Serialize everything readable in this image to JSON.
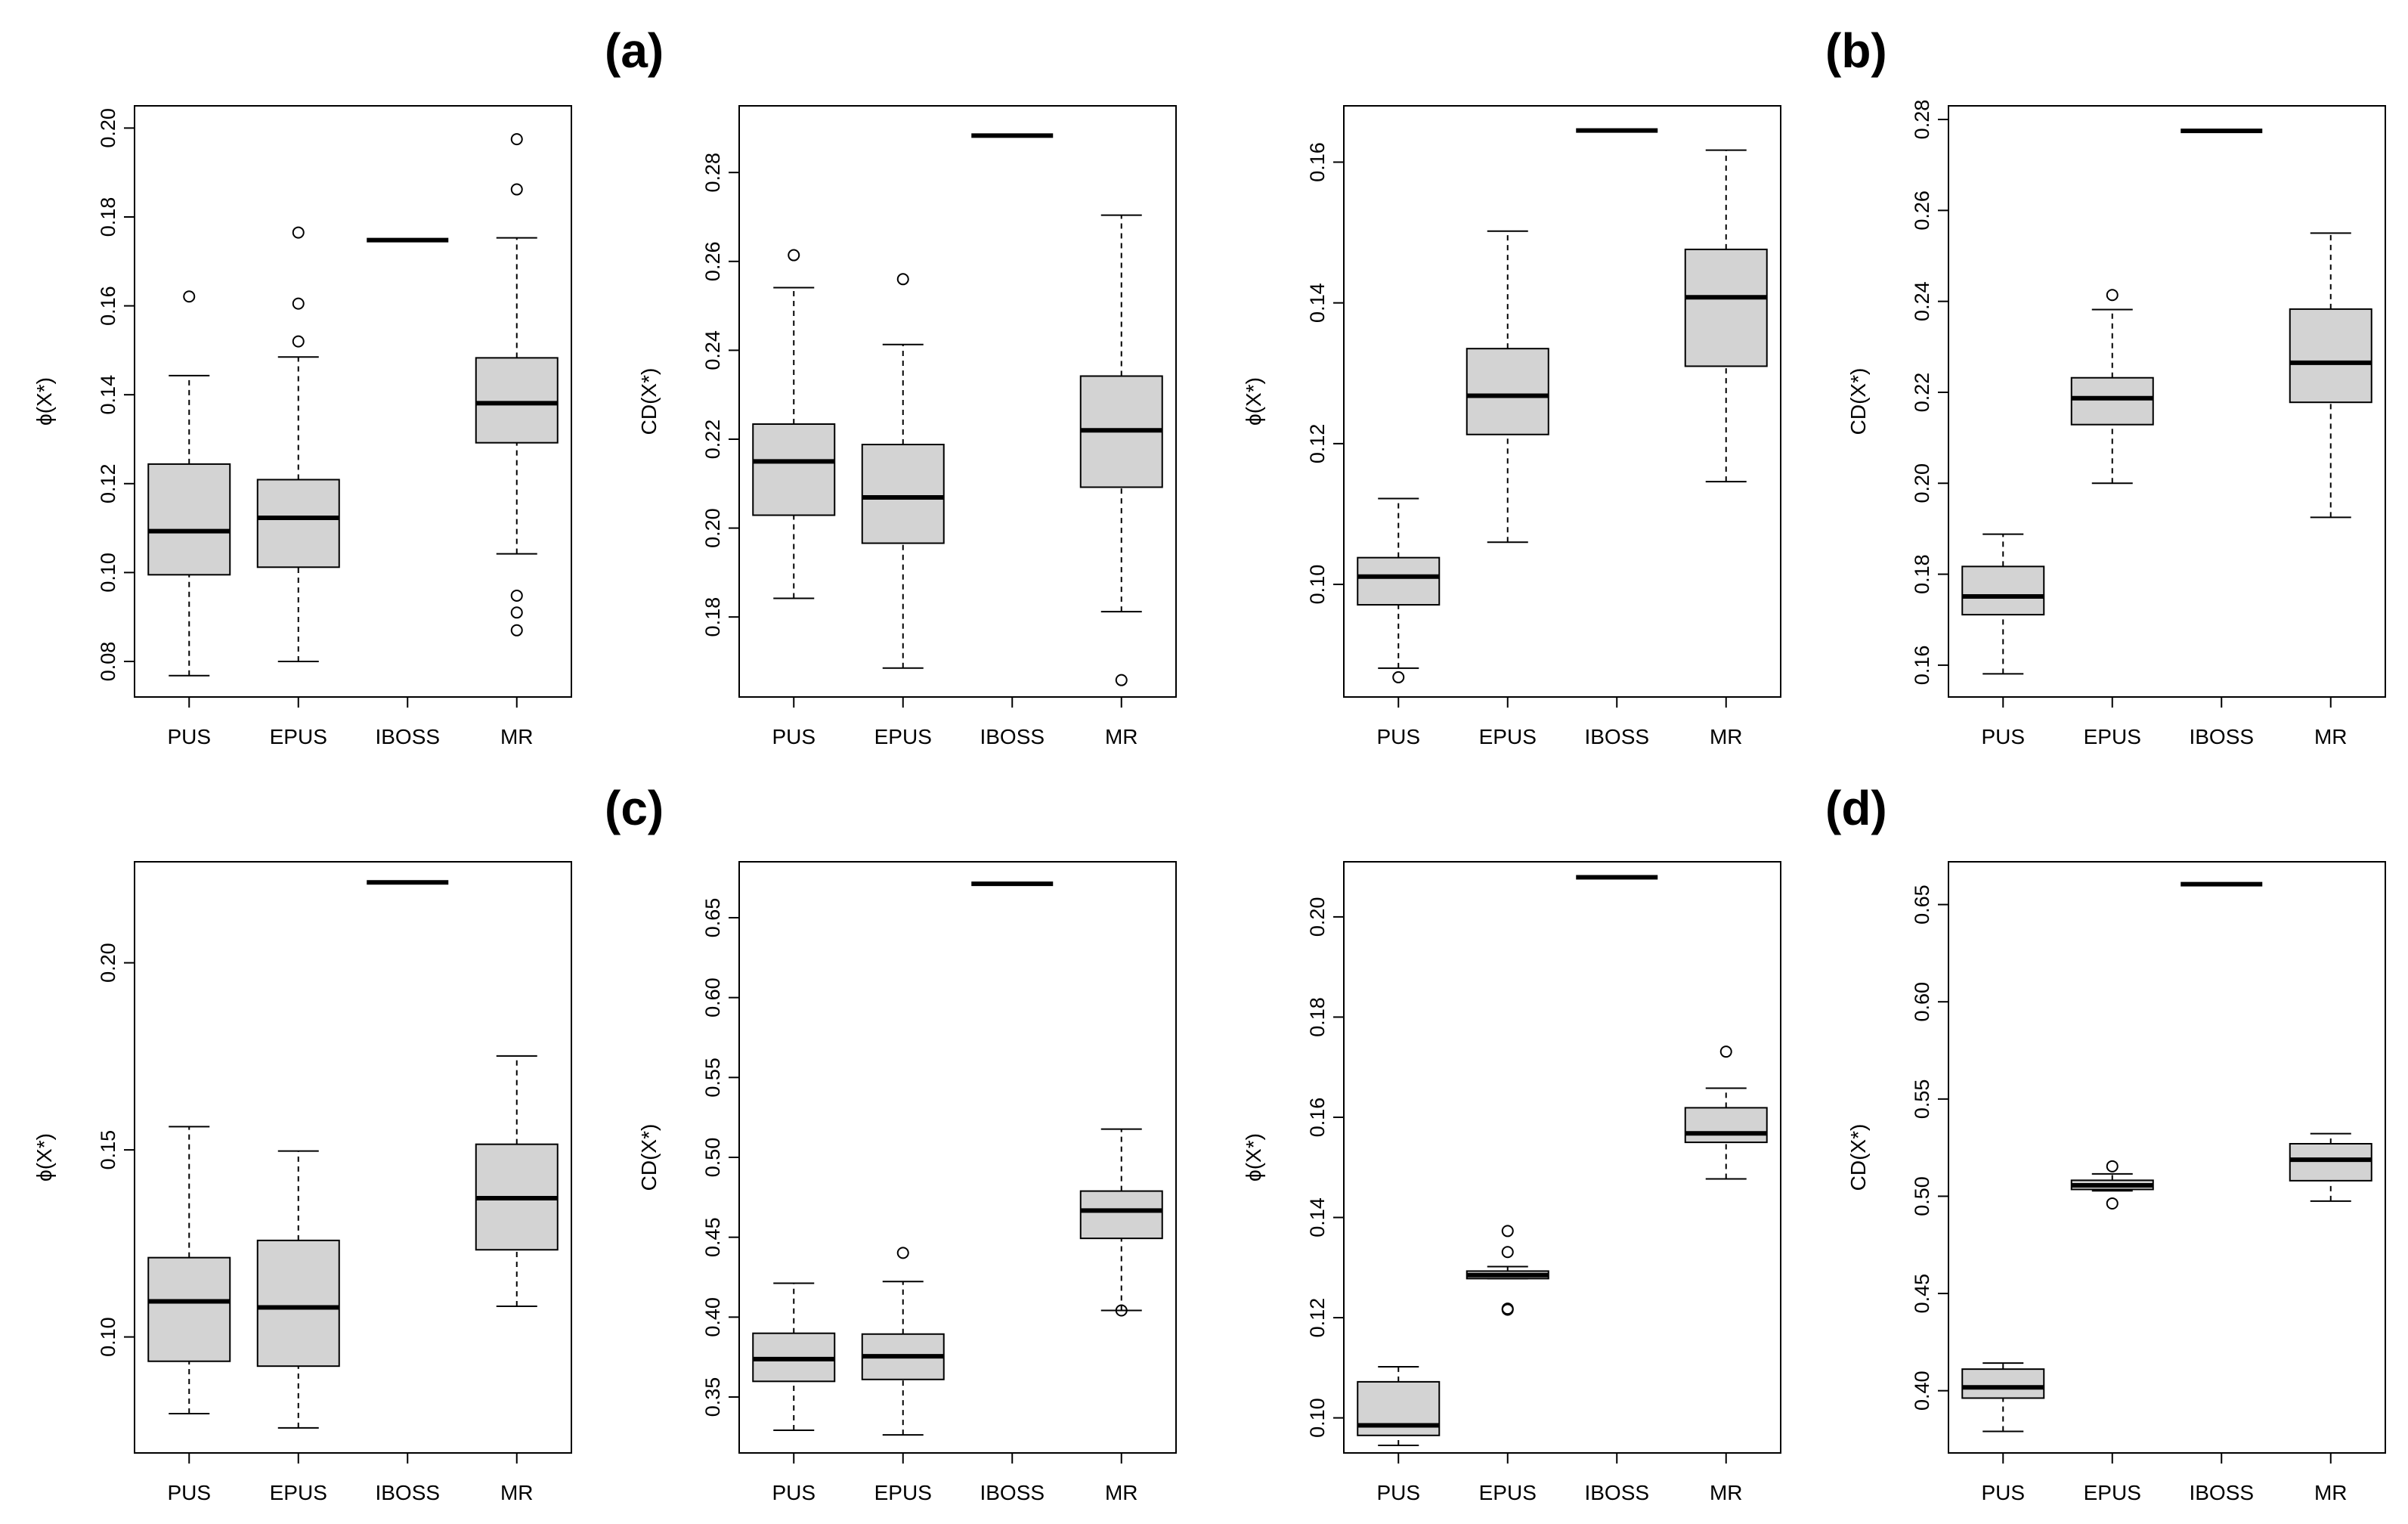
{
  "panel_labels": [
    "(a)",
    "(b)",
    "(c)",
    "(d)"
  ],
  "chart_data": [
    {
      "type": "boxplot",
      "ylabel": "ϕ(X*)",
      "ylim": [
        0.072,
        0.205
      ],
      "yticks": [
        0.08,
        0.1,
        0.12,
        0.14,
        0.16,
        0.18,
        0.2
      ],
      "yticklabels": [
        "0.08",
        "0.10",
        "0.12",
        "0.14",
        "0.16",
        "0.18",
        "0.20"
      ],
      "categories": [
        "PUS",
        "EPUS",
        "IBOSS",
        "MR"
      ],
      "boxes": [
        {
          "whisker_low": 0.0768,
          "q1": 0.0995,
          "median": 0.1093,
          "q3": 0.1244,
          "whisker_high": 0.1443,
          "outliers": [
            0.1621
          ]
        },
        {
          "whisker_low": 0.08,
          "q1": 0.1012,
          "median": 0.1123,
          "q3": 0.1209,
          "whisker_high": 0.1485,
          "outliers": [
            0.152,
            0.1605,
            0.1765
          ]
        },
        {
          "whisker_low": 0.1748,
          "q1": 0.1748,
          "median": 0.1748,
          "q3": 0.1748,
          "whisker_high": 0.1748,
          "outliers": []
        },
        {
          "whisker_low": 0.1042,
          "q1": 0.1292,
          "median": 0.1381,
          "q3": 0.1483,
          "whisker_high": 0.1753,
          "outliers": [
            0.087,
            0.091,
            0.0948,
            0.1862,
            0.1975
          ]
        }
      ]
    },
    {
      "type": "boxplot",
      "ylabel": "CD(X*)",
      "ylim": [
        0.162,
        0.295
      ],
      "yticks": [
        0.18,
        0.2,
        0.22,
        0.24,
        0.26,
        0.28
      ],
      "yticklabels": [
        "0.18",
        "0.20",
        "0.22",
        "0.24",
        "0.26",
        "0.28"
      ],
      "categories": [
        "PUS",
        "EPUS",
        "IBOSS",
        "MR"
      ],
      "boxes": [
        {
          "whisker_low": 0.1842,
          "q1": 0.2029,
          "median": 0.215,
          "q3": 0.2234,
          "whisker_high": 0.2541,
          "outliers": [
            0.2614
          ]
        },
        {
          "whisker_low": 0.1685,
          "q1": 0.1966,
          "median": 0.2069,
          "q3": 0.2188,
          "whisker_high": 0.2413,
          "outliers": [
            0.256
          ]
        },
        {
          "whisker_low": 0.2883,
          "q1": 0.2883,
          "median": 0.2883,
          "q3": 0.2883,
          "whisker_high": 0.2883,
          "outliers": []
        },
        {
          "whisker_low": 0.1812,
          "q1": 0.2092,
          "median": 0.222,
          "q3": 0.2342,
          "whisker_high": 0.2704,
          "outliers": [
            0.1658
          ]
        }
      ]
    },
    {
      "type": "boxplot",
      "ylabel": "ϕ(X*)",
      "ylim": [
        0.084,
        0.168
      ],
      "yticks": [
        0.1,
        0.12,
        0.14,
        0.16
      ],
      "yticklabels": [
        "0.10",
        "0.12",
        "0.14",
        "0.16"
      ],
      "categories": [
        "PUS",
        "EPUS",
        "IBOSS",
        "MR"
      ],
      "boxes": [
        {
          "whisker_low": 0.0881,
          "q1": 0.0971,
          "median": 0.1011,
          "q3": 0.1038,
          "whisker_high": 0.1122,
          "outliers": [
            0.0868
          ]
        },
        {
          "whisker_low": 0.106,
          "q1": 0.1213,
          "median": 0.1268,
          "q3": 0.1335,
          "whisker_high": 0.1502,
          "outliers": []
        },
        {
          "whisker_low": 0.1645,
          "q1": 0.1645,
          "median": 0.1645,
          "q3": 0.1645,
          "whisker_high": 0.1645,
          "outliers": []
        },
        {
          "whisker_low": 0.1146,
          "q1": 0.131,
          "median": 0.1408,
          "q3": 0.1476,
          "whisker_high": 0.1617,
          "outliers": []
        }
      ]
    },
    {
      "type": "boxplot",
      "ylabel": "CD(X*)",
      "ylim": [
        0.153,
        0.283
      ],
      "yticks": [
        0.16,
        0.18,
        0.2,
        0.22,
        0.24,
        0.26,
        0.28
      ],
      "yticklabels": [
        "0.16",
        "0.18",
        "0.20",
        "0.22",
        "0.24",
        "0.26",
        "0.28"
      ],
      "categories": [
        "PUS",
        "EPUS",
        "IBOSS",
        "MR"
      ],
      "boxes": [
        {
          "whisker_low": 0.1581,
          "q1": 0.1711,
          "median": 0.1751,
          "q3": 0.1817,
          "whisker_high": 0.1888,
          "outliers": []
        },
        {
          "whisker_low": 0.2,
          "q1": 0.2129,
          "median": 0.2187,
          "q3": 0.2232,
          "whisker_high": 0.2382,
          "outliers": [
            0.2414
          ]
        },
        {
          "whisker_low": 0.2775,
          "q1": 0.2775,
          "median": 0.2775,
          "q3": 0.2775,
          "whisker_high": 0.2775,
          "outliers": []
        },
        {
          "whisker_low": 0.1925,
          "q1": 0.2178,
          "median": 0.2265,
          "q3": 0.2383,
          "whisker_high": 0.255,
          "outliers": []
        }
      ]
    },
    {
      "type": "boxplot",
      "ylabel": "ϕ(X*)",
      "ylim": [
        0.069,
        0.227
      ],
      "yticks": [
        0.1,
        0.15,
        0.2
      ],
      "yticklabels": [
        "0.10",
        "0.15",
        "0.20"
      ],
      "categories": [
        "PUS",
        "EPUS",
        "IBOSS",
        "MR"
      ],
      "boxes": [
        {
          "whisker_low": 0.0795,
          "q1": 0.0935,
          "median": 0.1095,
          "q3": 0.1212,
          "whisker_high": 0.1562,
          "outliers": []
        },
        {
          "whisker_low": 0.0757,
          "q1": 0.0922,
          "median": 0.1079,
          "q3": 0.1258,
          "whisker_high": 0.1497,
          "outliers": []
        },
        {
          "whisker_low": 0.2215,
          "q1": 0.2215,
          "median": 0.2215,
          "q3": 0.2215,
          "whisker_high": 0.2215,
          "outliers": []
        },
        {
          "whisker_low": 0.1082,
          "q1": 0.1233,
          "median": 0.1371,
          "q3": 0.1515,
          "whisker_high": 0.1751,
          "outliers": []
        }
      ]
    },
    {
      "type": "boxplot",
      "ylabel": "CD(X*)",
      "ylim": [
        0.315,
        0.685
      ],
      "yticks": [
        0.35,
        0.4,
        0.45,
        0.5,
        0.55,
        0.6,
        0.65
      ],
      "yticklabels": [
        "0.35",
        "0.40",
        "0.45",
        "0.50",
        "0.55",
        "0.60",
        "0.65"
      ],
      "categories": [
        "PUS",
        "EPUS",
        "IBOSS",
        "MR"
      ],
      "boxes": [
        {
          "whisker_low": 0.3292,
          "q1": 0.3598,
          "median": 0.3737,
          "q3": 0.3899,
          "whisker_high": 0.4212,
          "outliers": []
        },
        {
          "whisker_low": 0.3263,
          "q1": 0.361,
          "median": 0.3755,
          "q3": 0.3894,
          "whisker_high": 0.4223,
          "outliers": [
            0.4402
          ]
        },
        {
          "whisker_low": 0.6712,
          "q1": 0.6712,
          "median": 0.6712,
          "q3": 0.6712,
          "whisker_high": 0.6712,
          "outliers": []
        },
        {
          "whisker_low": 0.4042,
          "q1": 0.4493,
          "median": 0.4667,
          "q3": 0.4789,
          "whisker_high": 0.5177,
          "outliers": [
            0.4042
          ]
        }
      ]
    },
    {
      "type": "boxplot",
      "ylabel": "ϕ(X*)",
      "ylim": [
        0.093,
        0.211
      ],
      "yticks": [
        0.1,
        0.12,
        0.14,
        0.16,
        0.18,
        0.2
      ],
      "yticklabels": [
        "0.10",
        "0.12",
        "0.14",
        "0.16",
        "0.18",
        "0.20"
      ],
      "categories": [
        "PUS",
        "EPUS",
        "IBOSS",
        "MR"
      ],
      "boxes": [
        {
          "whisker_low": 0.0945,
          "q1": 0.0965,
          "median": 0.0985,
          "q3": 0.1072,
          "whisker_high": 0.1102,
          "outliers": []
        },
        {
          "whisker_low": 0.1278,
          "q1": 0.1278,
          "median": 0.1285,
          "q3": 0.1293,
          "whisker_high": 0.1302,
          "outliers": [
            0.1216,
            0.1218,
            0.1331,
            0.1373
          ]
        },
        {
          "whisker_low": 0.2079,
          "q1": 0.2079,
          "median": 0.2079,
          "q3": 0.2079,
          "whisker_high": 0.2079,
          "outliers": []
        },
        {
          "whisker_low": 0.1477,
          "q1": 0.155,
          "median": 0.1568,
          "q3": 0.1619,
          "whisker_high": 0.1658,
          "outliers": [
            0.1731
          ]
        }
      ]
    },
    {
      "type": "boxplot",
      "ylabel": "CD(X*)",
      "ylim": [
        0.368,
        0.672
      ],
      "yticks": [
        0.4,
        0.45,
        0.5,
        0.55,
        0.6,
        0.65
      ],
      "yticklabels": [
        "0.40",
        "0.45",
        "0.50",
        "0.55",
        "0.60",
        "0.65"
      ],
      "categories": [
        "PUS",
        "EPUS",
        "IBOSS",
        "MR"
      ],
      "boxes": [
        {
          "whisker_low": 0.3791,
          "q1": 0.3962,
          "median": 0.4017,
          "q3": 0.4111,
          "whisker_high": 0.4142,
          "outliers": []
        },
        {
          "whisker_low": 0.5028,
          "q1": 0.5035,
          "median": 0.5056,
          "q3": 0.5082,
          "whisker_high": 0.5115,
          "outliers": [
            0.4963,
            0.5154
          ]
        },
        {
          "whisker_low": 0.6605,
          "q1": 0.6605,
          "median": 0.6605,
          "q3": 0.6605,
          "whisker_high": 0.6605,
          "outliers": []
        },
        {
          "whisker_low": 0.4975,
          "q1": 0.508,
          "median": 0.5188,
          "q3": 0.527,
          "whisker_high": 0.5322,
          "outliers": []
        }
      ]
    }
  ]
}
